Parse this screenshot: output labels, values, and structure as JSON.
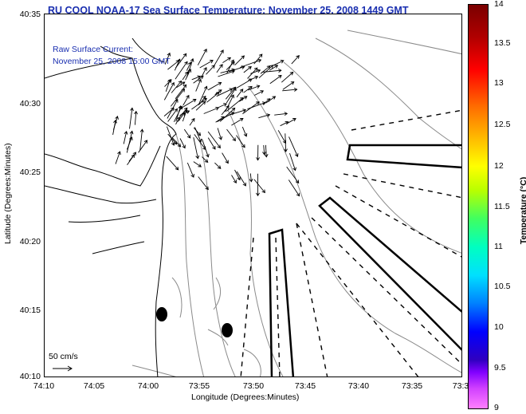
{
  "title": "RU COOL  NOAA-17  Sea Surface Temperature:  November 25, 2008 1449 GMT",
  "legend": {
    "current_label": "Raw Surface Current:",
    "current_time": "November 25, 2008 15:00 GMT",
    "scale_label": "50 cm/s"
  },
  "axes": {
    "x_title": "Longitude (Degrees:Minutes)",
    "y_title": "Latitude (Degrees:Minutes)",
    "x_ticks": [
      "74:10",
      "74:05",
      "74:00",
      "73:55",
      "73:50",
      "73:45",
      "73:40",
      "73:35",
      "73:3"
    ],
    "y_ticks": [
      "40:35",
      "40:30",
      "40:25",
      "40:20",
      "40:15",
      "40:10"
    ]
  },
  "colorbar": {
    "title": "Temperature (°C)",
    "ticks": [
      "14",
      "13.5",
      "13",
      "12.5",
      "12",
      "11.5",
      "11",
      "10.5",
      "10",
      "9.5",
      "9"
    ]
  },
  "colors": {
    "title": "#1a2fb0",
    "land_line": "#000000",
    "bathymetry": "#8a8a8a"
  }
}
